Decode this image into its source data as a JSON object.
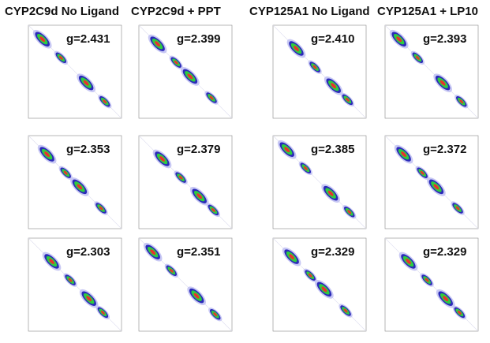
{
  "columns": [
    "CYP2C9d No Ligand",
    "CYP2C9d + PPT",
    "CYP125A1 No Ligand",
    "CYP125A1 + LP10"
  ],
  "rows": [
    [
      "g=2.431",
      "g=2.399",
      "g=2.410",
      "g=2.393"
    ],
    [
      "g=2.353",
      "g=2.379",
      "g=2.385",
      "g=2.372"
    ],
    [
      "g=2.303",
      "g=2.351",
      "g=2.329",
      "g=2.329"
    ]
  ]
}
